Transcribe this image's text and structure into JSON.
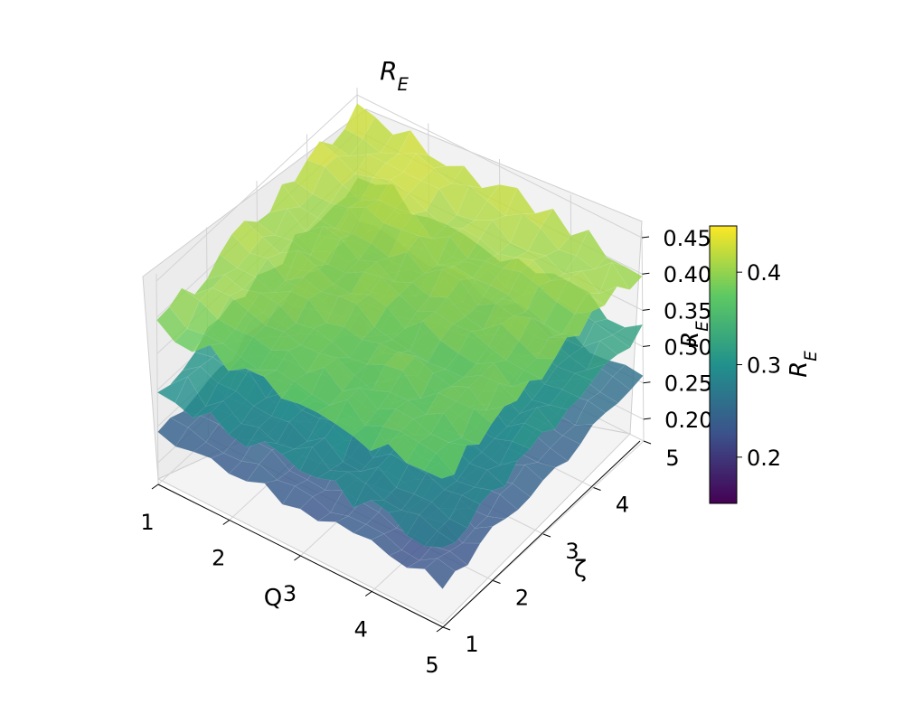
{
  "chart_data": {
    "type": "surface3d",
    "title": "R_E",
    "xlabel": "Q",
    "ylabel": "ζ",
    "zlabel": "R_E",
    "colorbar_label": "R_E",
    "colormap": "viridis",
    "x_ticks": [
      "1",
      "2",
      "3",
      "4",
      "5"
    ],
    "y_ticks": [
      "1",
      "2",
      "3",
      "4",
      "5"
    ],
    "z_ticks": [
      "0.20",
      "0.25",
      "0.30",
      "0.35",
      "0.40",
      "0.45"
    ],
    "colorbar_ticks": [
      "0.2",
      "0.3",
      "0.4"
    ],
    "xlim": [
      1,
      5
    ],
    "ylim": [
      1,
      5
    ],
    "zlim": [
      0.17,
      0.46
    ],
    "colorbar_range": [
      0.15,
      0.45
    ],
    "grid": true,
    "surfaces": [
      {
        "level": 0.25,
        "min": 0.21,
        "max": 0.27
      },
      {
        "level": 0.31,
        "min": 0.27,
        "max": 0.35
      },
      {
        "level": 0.4,
        "min": 0.37,
        "max": 0.45
      }
    ]
  }
}
